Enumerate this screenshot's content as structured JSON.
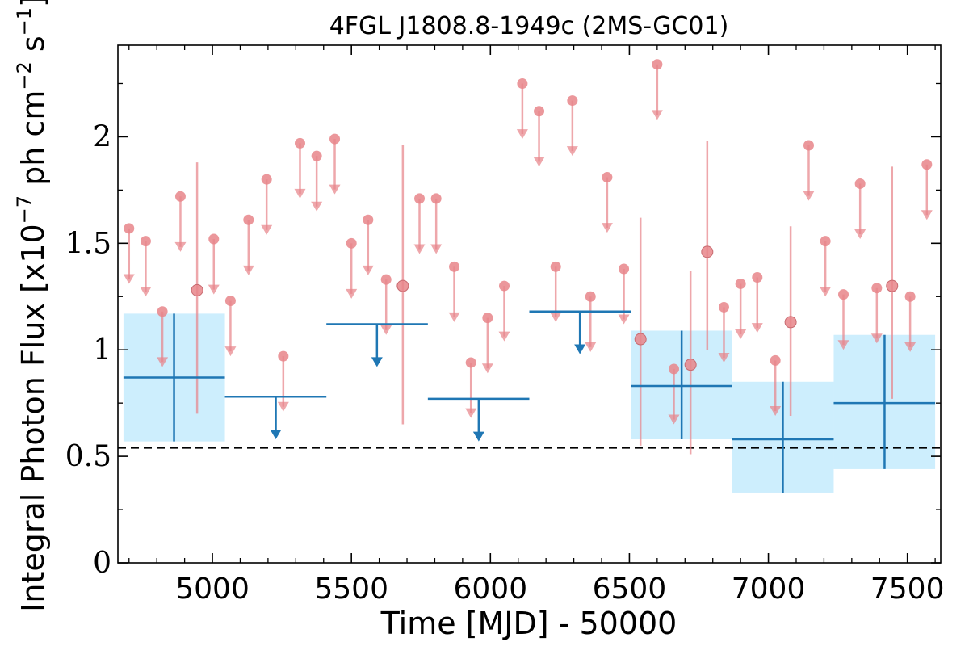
{
  "chart_data": {
    "type": "scatter",
    "title": "4FGL J1808.8-1949c (2MS-GC01)",
    "xlabel": "Time [MJD] - 50000",
    "ylabel": "Integral Photon Flux [x10",
    "ylabel_exp": "−7",
    "ylabel_mid": " ph cm",
    "ylabel_exp2": "−2",
    "ylabel_end": " s",
    "ylabel_exp3": "−1",
    "ylabel_close": "]",
    "xlim": [
      4660,
      7620
    ],
    "ylim": [
      0,
      2.43
    ],
    "x_ticks": [
      5000,
      5500,
      6000,
      6500,
      7000,
      7500
    ],
    "x_tick_labels": [
      "5000",
      "5500",
      "6000",
      "6500",
      "7000",
      "7500"
    ],
    "y_ticks": [
      0,
      0.5,
      1,
      1.5,
      2
    ],
    "y_tick_labels": [
      "0",
      "0.5",
      "1",
      "1.5",
      "2"
    ],
    "colors": {
      "monthly": "#e8858a",
      "yearly": "#1f77b4",
      "band": "#cdeefd",
      "reference": "#000000"
    },
    "reference_line": {
      "y": 0.54,
      "style": "dashed"
    },
    "monthly_upper_limits": [
      {
        "x": 4700,
        "y": 1.57
      },
      {
        "x": 4760,
        "y": 1.51
      },
      {
        "x": 4820,
        "y": 1.18
      },
      {
        "x": 4885,
        "y": 1.72
      },
      {
        "x": 5005,
        "y": 1.52
      },
      {
        "x": 5065,
        "y": 1.23
      },
      {
        "x": 5130,
        "y": 1.61
      },
      {
        "x": 5195,
        "y": 1.8
      },
      {
        "x": 5255,
        "y": 0.97
      },
      {
        "x": 5315,
        "y": 1.97
      },
      {
        "x": 5375,
        "y": 1.91
      },
      {
        "x": 5440,
        "y": 1.99
      },
      {
        "x": 5500,
        "y": 1.5
      },
      {
        "x": 5560,
        "y": 1.61
      },
      {
        "x": 5625,
        "y": 1.33
      },
      {
        "x": 5745,
        "y": 1.71
      },
      {
        "x": 5805,
        "y": 1.71
      },
      {
        "x": 5870,
        "y": 1.39
      },
      {
        "x": 5930,
        "y": 0.94
      },
      {
        "x": 5990,
        "y": 1.15
      },
      {
        "x": 6050,
        "y": 1.3
      },
      {
        "x": 6115,
        "y": 2.25
      },
      {
        "x": 6175,
        "y": 2.12
      },
      {
        "x": 6235,
        "y": 1.39
      },
      {
        "x": 6295,
        "y": 2.17
      },
      {
        "x": 6360,
        "y": 1.25
      },
      {
        "x": 6420,
        "y": 1.81
      },
      {
        "x": 6480,
        "y": 1.38
      },
      {
        "x": 6600,
        "y": 2.34
      },
      {
        "x": 6660,
        "y": 0.91
      },
      {
        "x": 6840,
        "y": 1.2
      },
      {
        "x": 6900,
        "y": 1.31
      },
      {
        "x": 6960,
        "y": 1.34
      },
      {
        "x": 7025,
        "y": 0.95
      },
      {
        "x": 7145,
        "y": 1.96
      },
      {
        "x": 7205,
        "y": 1.51
      },
      {
        "x": 7270,
        "y": 1.26
      },
      {
        "x": 7330,
        "y": 1.78
      },
      {
        "x": 7390,
        "y": 1.29
      },
      {
        "x": 7510,
        "y": 1.25
      },
      {
        "x": 7570,
        "y": 1.87
      }
    ],
    "monthly_detections": [
      {
        "x": 4945,
        "y": 1.28,
        "ylow": 0.7,
        "yhigh": 1.88
      },
      {
        "x": 5685,
        "y": 1.3,
        "ylow": 0.65,
        "yhigh": 1.96
      },
      {
        "x": 6540,
        "y": 1.05,
        "ylow": 0.55,
        "yhigh": 1.62
      },
      {
        "x": 6720,
        "y": 0.93,
        "ylow": 0.51,
        "yhigh": 1.37
      },
      {
        "x": 6780,
        "y": 1.46,
        "ylow": 1.0,
        "yhigh": 1.98
      },
      {
        "x": 7080,
        "y": 1.13,
        "ylow": 0.69,
        "yhigh": 1.58
      },
      {
        "x": 7445,
        "y": 1.3,
        "ylow": 0.77,
        "yhigh": 1.86
      }
    ],
    "yearly_detections": [
      {
        "x0": 4680,
        "x1": 5045,
        "x": 4862,
        "y": 0.87,
        "ylow": 0.57,
        "yhigh": 1.17
      },
      {
        "x0": 6505,
        "x1": 6870,
        "x": 6688,
        "y": 0.83,
        "ylow": 0.58,
        "yhigh": 1.09
      },
      {
        "x0": 6870,
        "x1": 7235,
        "x": 7052,
        "y": 0.58,
        "ylow": 0.33,
        "yhigh": 0.85
      },
      {
        "x0": 7235,
        "x1": 7600,
        "x": 7418,
        "y": 0.75,
        "ylow": 0.44,
        "yhigh": 1.07
      }
    ],
    "yearly_upper_limits": [
      {
        "x0": 5045,
        "x1": 5410,
        "x": 5228,
        "y": 0.78
      },
      {
        "x0": 5410,
        "x1": 5775,
        "x": 5592,
        "y": 1.12
      },
      {
        "x0": 5775,
        "x1": 6140,
        "x": 5958,
        "y": 0.77
      },
      {
        "x0": 6140,
        "x1": 6505,
        "x": 6322,
        "y": 1.18
      }
    ]
  }
}
